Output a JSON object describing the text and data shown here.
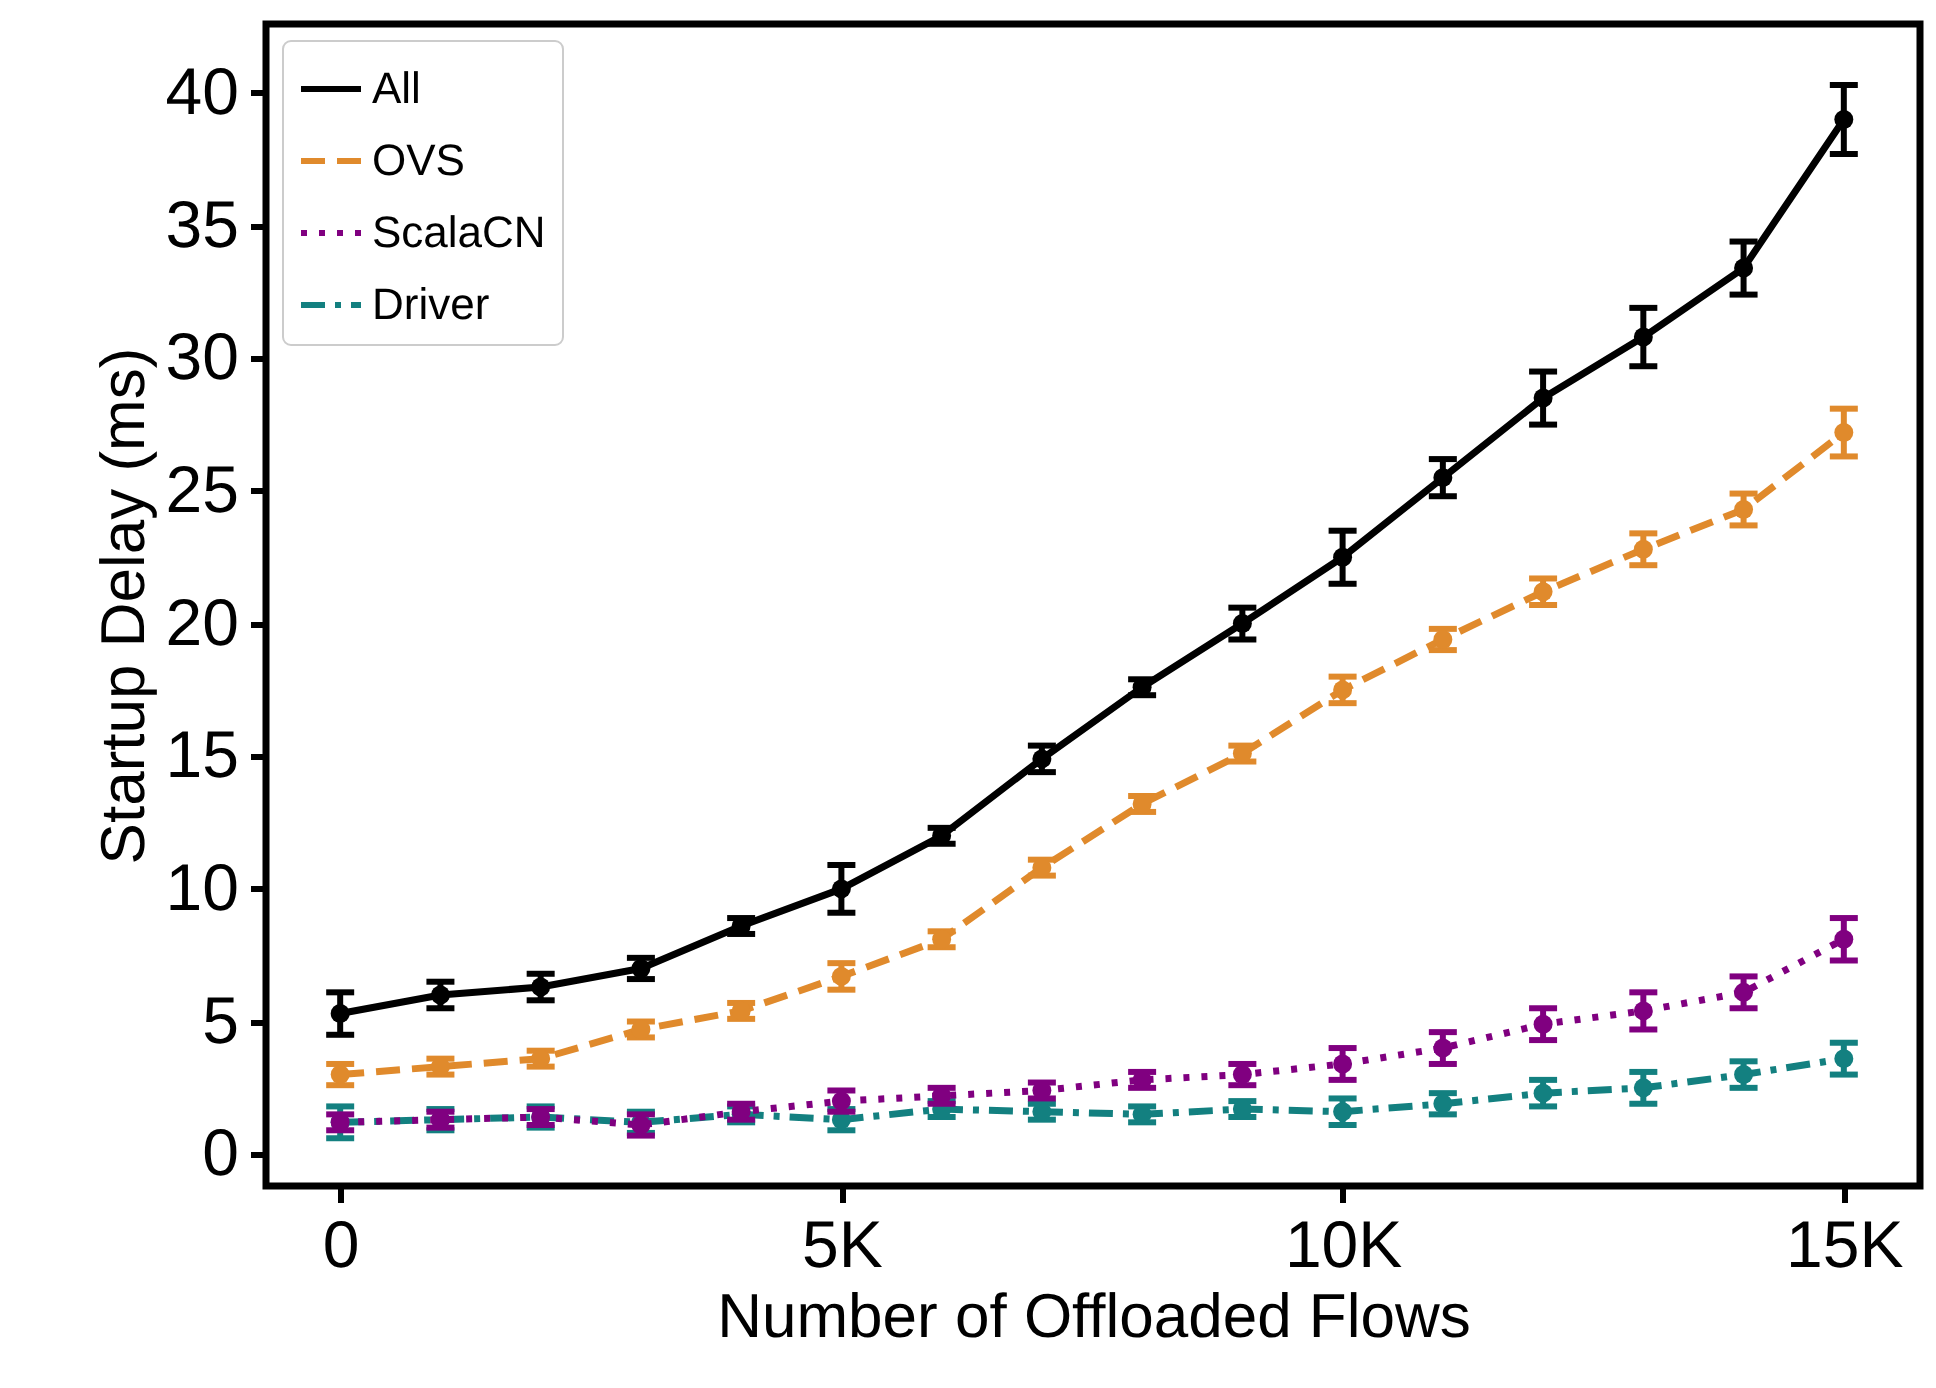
{
  "chart_data": {
    "type": "line",
    "xlabel": "Number of Offloaded Flows",
    "ylabel": "Startup Delay (ms)",
    "x": [
      0,
      1000,
      2000,
      3000,
      4000,
      5000,
      6000,
      7000,
      8000,
      9000,
      10000,
      11000,
      12000,
      13000,
      14000,
      15000
    ],
    "xlim": [
      -740,
      15760
    ],
    "xticks": [
      0,
      {
        "value": 5000,
        "label": "5K"
      },
      {
        "value": 10000,
        "label": "10K"
      },
      {
        "value": 15000,
        "label": "15K"
      }
    ],
    "ylim": [
      -1.2,
      42.6
    ],
    "yticks": [
      0,
      5,
      10,
      15,
      20,
      25,
      30,
      35,
      40
    ],
    "grid": false,
    "legend": "top left",
    "marker": "circle",
    "series": [
      {
        "name": "All",
        "color": "#000000",
        "line_style": "solid",
        "values": [
          5.3,
          6.0,
          6.3,
          7.0,
          8.6,
          10.0,
          12.0,
          14.9,
          17.6,
          20.0,
          22.5,
          25.5,
          28.5,
          30.8,
          33.4,
          39.0
        ],
        "errors": [
          0.8,
          0.5,
          0.5,
          0.4,
          0.3,
          0.9,
          0.3,
          0.5,
          0.3,
          0.6,
          1.0,
          0.7,
          1.0,
          1.1,
          1.0,
          1.3
        ]
      },
      {
        "name": "OVS",
        "color": "#e08a2c",
        "line_style": "dashed",
        "values": [
          3.0,
          3.3,
          3.6,
          4.7,
          5.4,
          6.7,
          8.1,
          10.8,
          13.2,
          15.1,
          17.5,
          19.4,
          21.2,
          22.8,
          24.3,
          27.2
        ],
        "errors": [
          0.4,
          0.3,
          0.3,
          0.3,
          0.3,
          0.5,
          0.3,
          0.3,
          0.3,
          0.3,
          0.5,
          0.4,
          0.5,
          0.6,
          0.6,
          0.9
        ]
      },
      {
        "name": "ScalaCN",
        "color": "#800080",
        "line_style": "dotted",
        "values": [
          1.2,
          1.3,
          1.4,
          1.1,
          1.6,
          2.0,
          2.2,
          2.4,
          2.8,
          3.0,
          3.4,
          4.0,
          4.9,
          5.4,
          6.1,
          8.1
        ],
        "errors": [
          0.3,
          0.3,
          0.3,
          0.4,
          0.3,
          0.4,
          0.3,
          0.3,
          0.3,
          0.4,
          0.6,
          0.6,
          0.6,
          0.7,
          0.6,
          0.8
        ]
      },
      {
        "name": "Driver",
        "color": "#138080",
        "line_style": "dashdot",
        "values": [
          1.2,
          1.3,
          1.4,
          1.2,
          1.5,
          1.3,
          1.7,
          1.6,
          1.5,
          1.7,
          1.6,
          1.9,
          2.3,
          2.5,
          3.0,
          3.6
        ],
        "errors": [
          0.6,
          0.4,
          0.4,
          0.4,
          0.3,
          0.4,
          0.3,
          0.3,
          0.3,
          0.3,
          0.5,
          0.4,
          0.5,
          0.6,
          0.5,
          0.6
        ]
      }
    ]
  }
}
